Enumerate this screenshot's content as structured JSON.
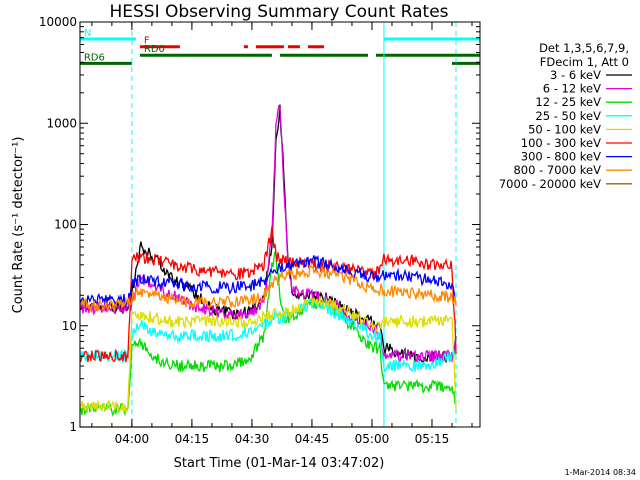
{
  "chart_data": {
    "type": "line",
    "title": "HESSI Observing Summary Count Rates",
    "xlabel": "Start Time (01-Mar-14 03:47:02)",
    "ylabel": "Count Rate (s⁻¹ detector⁻¹)",
    "yscale": "log",
    "xlim": [
      "03:47:02",
      "05:27:00"
    ],
    "ylim": [
      1,
      10000
    ],
    "x_ticks": [
      "04:00",
      "04:15",
      "04:30",
      "04:45",
      "05:00",
      "05:15"
    ],
    "y_ticks": [
      "1",
      "10",
      "100",
      "1000",
      "10000"
    ],
    "legend_header": [
      "Det 1,3,5,6,7,9,",
      "FDecim 1, Att 0"
    ],
    "legend_position": "right",
    "series": [
      {
        "name": "3 - 6 keV",
        "color": "#000000",
        "points": [
          [
            "03:47",
            15
          ],
          [
            "03:59",
            15
          ],
          [
            "04:00",
            20
          ],
          [
            "04:02",
            60
          ],
          [
            "04:05",
            50
          ],
          [
            "04:10",
            30
          ],
          [
            "04:15",
            22
          ],
          [
            "04:20",
            15
          ],
          [
            "04:25",
            13
          ],
          [
            "04:30",
            14
          ],
          [
            "04:33",
            20
          ],
          [
            "04:35",
            60
          ],
          [
            "04:36",
            700
          ],
          [
            "04:37",
            1400
          ],
          [
            "04:38",
            300
          ],
          [
            "04:39",
            50
          ],
          [
            "04:40",
            22
          ],
          [
            "04:45",
            20
          ],
          [
            "04:50",
            18
          ],
          [
            "04:55",
            13
          ],
          [
            "05:00",
            11
          ],
          [
            "05:02",
            9
          ],
          [
            "05:03",
            6
          ],
          [
            "05:10",
            5
          ],
          [
            "05:15",
            5
          ],
          [
            "05:20",
            5
          ],
          [
            "05:21",
            7
          ]
        ]
      },
      {
        "name": "6 - 12 keV",
        "color": "#e000e0",
        "points": [
          [
            "03:47",
            15
          ],
          [
            "03:59",
            15
          ],
          [
            "04:00",
            16
          ],
          [
            "04:02",
            30
          ],
          [
            "04:05",
            25
          ],
          [
            "04:10",
            20
          ],
          [
            "04:15",
            16
          ],
          [
            "04:20",
            14
          ],
          [
            "04:25",
            13
          ],
          [
            "04:30",
            13
          ],
          [
            "04:33",
            18
          ],
          [
            "04:35",
            80
          ],
          [
            "04:36",
            900
          ],
          [
            "04:37",
            1500
          ],
          [
            "04:38",
            250
          ],
          [
            "04:39",
            40
          ],
          [
            "04:40",
            22
          ],
          [
            "04:45",
            20
          ],
          [
            "04:50",
            17
          ],
          [
            "04:55",
            12
          ],
          [
            "05:00",
            10
          ],
          [
            "05:02",
            8
          ],
          [
            "05:03",
            5
          ],
          [
            "05:10",
            5
          ],
          [
            "05:15",
            5
          ],
          [
            "05:20",
            5
          ],
          [
            "05:21",
            6
          ]
        ]
      },
      {
        "name": "12 - 25 keV",
        "color": "#00dd00",
        "points": [
          [
            "03:47",
            1.5
          ],
          [
            "03:59",
            1.5
          ],
          [
            "04:00",
            6
          ],
          [
            "04:02",
            7
          ],
          [
            "04:05",
            5
          ],
          [
            "04:10",
            4
          ],
          [
            "04:15",
            4
          ],
          [
            "04:20",
            4
          ],
          [
            "04:25",
            4
          ],
          [
            "04:30",
            5
          ],
          [
            "04:33",
            8
          ],
          [
            "04:35",
            40
          ],
          [
            "04:36",
            50
          ],
          [
            "04:37",
            20
          ],
          [
            "04:38",
            12
          ],
          [
            "04:40",
            12
          ],
          [
            "04:45",
            17
          ],
          [
            "04:50",
            15
          ],
          [
            "04:55",
            10
          ],
          [
            "05:00",
            6
          ],
          [
            "05:02",
            6
          ],
          [
            "05:03",
            2.5
          ],
          [
            "05:10",
            2.5
          ],
          [
            "05:15",
            2.5
          ],
          [
            "05:20",
            2.5
          ],
          [
            "05:21",
            1.8
          ]
        ]
      },
      {
        "name": "25 - 50 keV",
        "color": "#00ffff",
        "points": [
          [
            "03:47",
            5
          ],
          [
            "03:59",
            5
          ],
          [
            "04:00",
            8
          ],
          [
            "04:02",
            10
          ],
          [
            "04:05",
            9
          ],
          [
            "04:10",
            8
          ],
          [
            "04:15",
            8
          ],
          [
            "04:20",
            8
          ],
          [
            "04:25",
            8
          ],
          [
            "04:30",
            9
          ],
          [
            "04:33",
            10
          ],
          [
            "04:35",
            12
          ],
          [
            "04:36",
            12
          ],
          [
            "04:37",
            12
          ],
          [
            "04:38",
            12
          ],
          [
            "04:40",
            14
          ],
          [
            "04:45",
            16
          ],
          [
            "04:50",
            14
          ],
          [
            "04:55",
            11
          ],
          [
            "05:00",
            8
          ],
          [
            "05:02",
            8
          ],
          [
            "05:03",
            4
          ],
          [
            "05:10",
            4
          ],
          [
            "05:15",
            4
          ],
          [
            "05:20",
            5
          ],
          [
            "05:21",
            6
          ]
        ]
      },
      {
        "name": "50 - 100 keV",
        "color": "#dddd00",
        "points": [
          [
            "03:47",
            1.6
          ],
          [
            "03:59",
            1.6
          ],
          [
            "04:00",
            12
          ],
          [
            "04:02",
            13
          ],
          [
            "04:05",
            12
          ],
          [
            "04:10",
            11
          ],
          [
            "04:15",
            11
          ],
          [
            "04:20",
            11
          ],
          [
            "04:25",
            11
          ],
          [
            "04:30",
            11
          ],
          [
            "04:33",
            12
          ],
          [
            "04:35",
            13
          ],
          [
            "04:38",
            13
          ],
          [
            "04:40",
            14
          ],
          [
            "04:45",
            18
          ],
          [
            "04:50",
            16
          ],
          [
            "04:55",
            13
          ],
          [
            "05:00",
            10
          ],
          [
            "05:02",
            10
          ],
          [
            "05:03",
            11
          ],
          [
            "05:10",
            11
          ],
          [
            "05:15",
            11
          ],
          [
            "05:20",
            12
          ],
          [
            "05:21",
            1.6
          ]
        ]
      },
      {
        "name": "100 - 300 keV",
        "color": "#ff0000",
        "points": [
          [
            "03:47",
            5
          ],
          [
            "03:59",
            5
          ],
          [
            "04:00",
            45
          ],
          [
            "04:02",
            48
          ],
          [
            "04:05",
            45
          ],
          [
            "04:10",
            40
          ],
          [
            "04:15",
            36
          ],
          [
            "04:20",
            34
          ],
          [
            "04:25",
            32
          ],
          [
            "04:30",
            34
          ],
          [
            "04:33",
            40
          ],
          [
            "04:35",
            90
          ],
          [
            "04:36",
            50
          ],
          [
            "04:37",
            45
          ],
          [
            "04:40",
            42
          ],
          [
            "04:45",
            40
          ],
          [
            "04:50",
            38
          ],
          [
            "04:55",
            35
          ],
          [
            "05:00",
            33
          ],
          [
            "05:02",
            35
          ],
          [
            "05:03",
            45
          ],
          [
            "05:10",
            44
          ],
          [
            "05:15",
            40
          ],
          [
            "05:20",
            40
          ],
          [
            "05:21",
            6
          ]
        ]
      },
      {
        "name": "300 - 800 keV",
        "color": "#0000ff",
        "points": [
          [
            "03:47",
            18
          ],
          [
            "03:59",
            18
          ],
          [
            "04:00",
            25
          ],
          [
            "04:02",
            30
          ],
          [
            "04:05",
            28
          ],
          [
            "04:10",
            26
          ],
          [
            "04:15",
            25
          ],
          [
            "04:20",
            24
          ],
          [
            "04:25",
            24
          ],
          [
            "04:30",
            25
          ],
          [
            "04:33",
            28
          ],
          [
            "04:35",
            35
          ],
          [
            "04:37",
            38
          ],
          [
            "04:40",
            40
          ],
          [
            "04:45",
            44
          ],
          [
            "04:50",
            40
          ],
          [
            "04:55",
            35
          ],
          [
            "05:00",
            30
          ],
          [
            "05:02",
            30
          ],
          [
            "05:03",
            32
          ],
          [
            "05:10",
            30
          ],
          [
            "05:15",
            28
          ],
          [
            "05:20",
            25
          ],
          [
            "05:21",
            18
          ]
        ]
      },
      {
        "name": "800 - 7000 keV",
        "color": "#ff8800",
        "points": [
          [
            "03:47",
            16
          ],
          [
            "03:59",
            16
          ],
          [
            "04:00",
            19
          ],
          [
            "04:02",
            22
          ],
          [
            "04:05",
            20
          ],
          [
            "04:10",
            18
          ],
          [
            "04:15",
            17
          ],
          [
            "04:20",
            17
          ],
          [
            "04:25",
            17
          ],
          [
            "04:30",
            18
          ],
          [
            "04:33",
            20
          ],
          [
            "04:35",
            26
          ],
          [
            "04:37",
            30
          ],
          [
            "04:40",
            32
          ],
          [
            "04:45",
            35
          ],
          [
            "04:50",
            32
          ],
          [
            "04:55",
            28
          ],
          [
            "05:00",
            23
          ],
          [
            "05:02",
            23
          ],
          [
            "05:03",
            22
          ],
          [
            "05:10",
            21
          ],
          [
            "05:15",
            20
          ],
          [
            "05:20",
            19
          ],
          [
            "05:21",
            17
          ]
        ]
      },
      {
        "name": "7000 - 20000 keV",
        "color": "#996600",
        "points": [
          [
            "03:47",
            1
          ],
          [
            "05:21",
            1
          ]
        ]
      }
    ],
    "flags": [
      {
        "label": "N",
        "color": "#00ffff",
        "y": 6800,
        "segments": [
          [
            "03:47",
            "04:01"
          ],
          [
            "05:03",
            "05:27"
          ]
        ]
      },
      {
        "label": "F",
        "color": "#ee0000",
        "y": 5700,
        "segments": [
          [
            "04:02",
            "04:12"
          ],
          [
            "04:28",
            "04:29"
          ],
          [
            "04:31",
            "04:38"
          ],
          [
            "04:39",
            "04:42"
          ],
          [
            "04:44",
            "04:48"
          ]
        ]
      },
      {
        "label": "RD0",
        "color": "#006600",
        "y": 4700,
        "segments": [
          [
            "04:02",
            "04:35"
          ],
          [
            "04:37",
            "04:59"
          ],
          [
            "05:01",
            "05:27"
          ]
        ]
      },
      {
        "label": "RD6",
        "color": "#006600",
        "y": 3900,
        "segments": [
          [
            "03:47",
            "04:00"
          ],
          [
            "05:20",
            "05:27"
          ]
        ]
      }
    ],
    "vlines": [
      {
        "x": "03:47",
        "style": "solid"
      },
      {
        "x": "04:00",
        "style": "dashed"
      },
      {
        "x": "05:03",
        "style": "solid"
      },
      {
        "x": "05:21",
        "style": "dashed"
      }
    ],
    "grid": false
  },
  "footer": {
    "timestamp": "1-Mar-2014 08:34"
  }
}
